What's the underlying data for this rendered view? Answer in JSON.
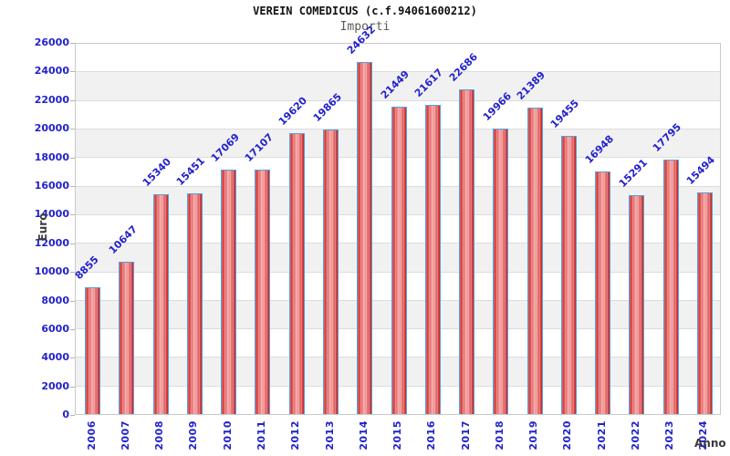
{
  "header": {
    "title": "VEREIN COMEDICUS (c.f.94061600212)",
    "subtitle": "Importi"
  },
  "chart_data": {
    "type": "bar",
    "title": "VEREIN COMEDICUS (c.f.94061600212)",
    "subtitle": "Importi",
    "xlabel": "Anno",
    "ylabel": "Euro",
    "categories": [
      "2006",
      "2007",
      "2008",
      "2009",
      "2010",
      "2011",
      "2012",
      "2013",
      "2014",
      "2015",
      "2016",
      "2017",
      "2018",
      "2019",
      "2020",
      "2021",
      "2022",
      "2023",
      "2024"
    ],
    "values": [
      8855,
      10647,
      15340,
      15451,
      17069,
      17107,
      19620,
      19865,
      24632,
      21449,
      21617,
      22686,
      19966,
      21389,
      19455,
      16948,
      15291,
      17795,
      15494
    ],
    "ylim": [
      0,
      26000
    ],
    "ytick_step": 2000,
    "grid": true,
    "legend": "none",
    "colors": {
      "bar_edge": "#c32727",
      "bar_center": "#f2a0a0",
      "bar_border": "#55a0dc",
      "tick_label": "#2222cc",
      "value_label": "#2222cc",
      "axis_title": "#3a3a3a",
      "band_alt": "#f1f1f1",
      "gridline": "#dcdcdc"
    }
  }
}
